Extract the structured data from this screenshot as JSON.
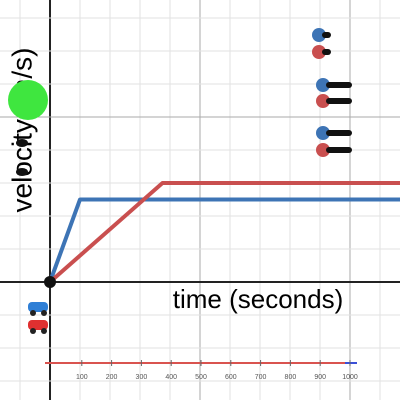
{
  "chart_data": {
    "type": "line",
    "x_label": "time (seconds)",
    "y_label": "velocity (m/s)",
    "xlim": [
      -1.667,
      11.667
    ],
    "ylim": [
      -3.576,
      8.545
    ],
    "xticks": [
      -1,
      0,
      1,
      2,
      3,
      4,
      5,
      6,
      7,
      8,
      9,
      10,
      11
    ],
    "yticks": [
      -3,
      -2,
      -1,
      0,
      1,
      2,
      3,
      4,
      5,
      6,
      7,
      8
    ],
    "grid": true,
    "series": [
      {
        "color": "#3d74b5",
        "x": [
          0,
          1,
          11.667
        ],
        "values": [
          0,
          2.5,
          2.5
        ]
      },
      {
        "color": "#c94f4f",
        "x": [
          0,
          3.75,
          11.667
        ],
        "values": [
          0,
          3,
          3
        ]
      }
    ],
    "timeline": {
      "xlim": [
        0,
        1000
      ],
      "ticks": [
        100,
        200,
        300,
        400,
        500,
        600,
        700,
        800,
        900,
        1000
      ]
    }
  }
}
